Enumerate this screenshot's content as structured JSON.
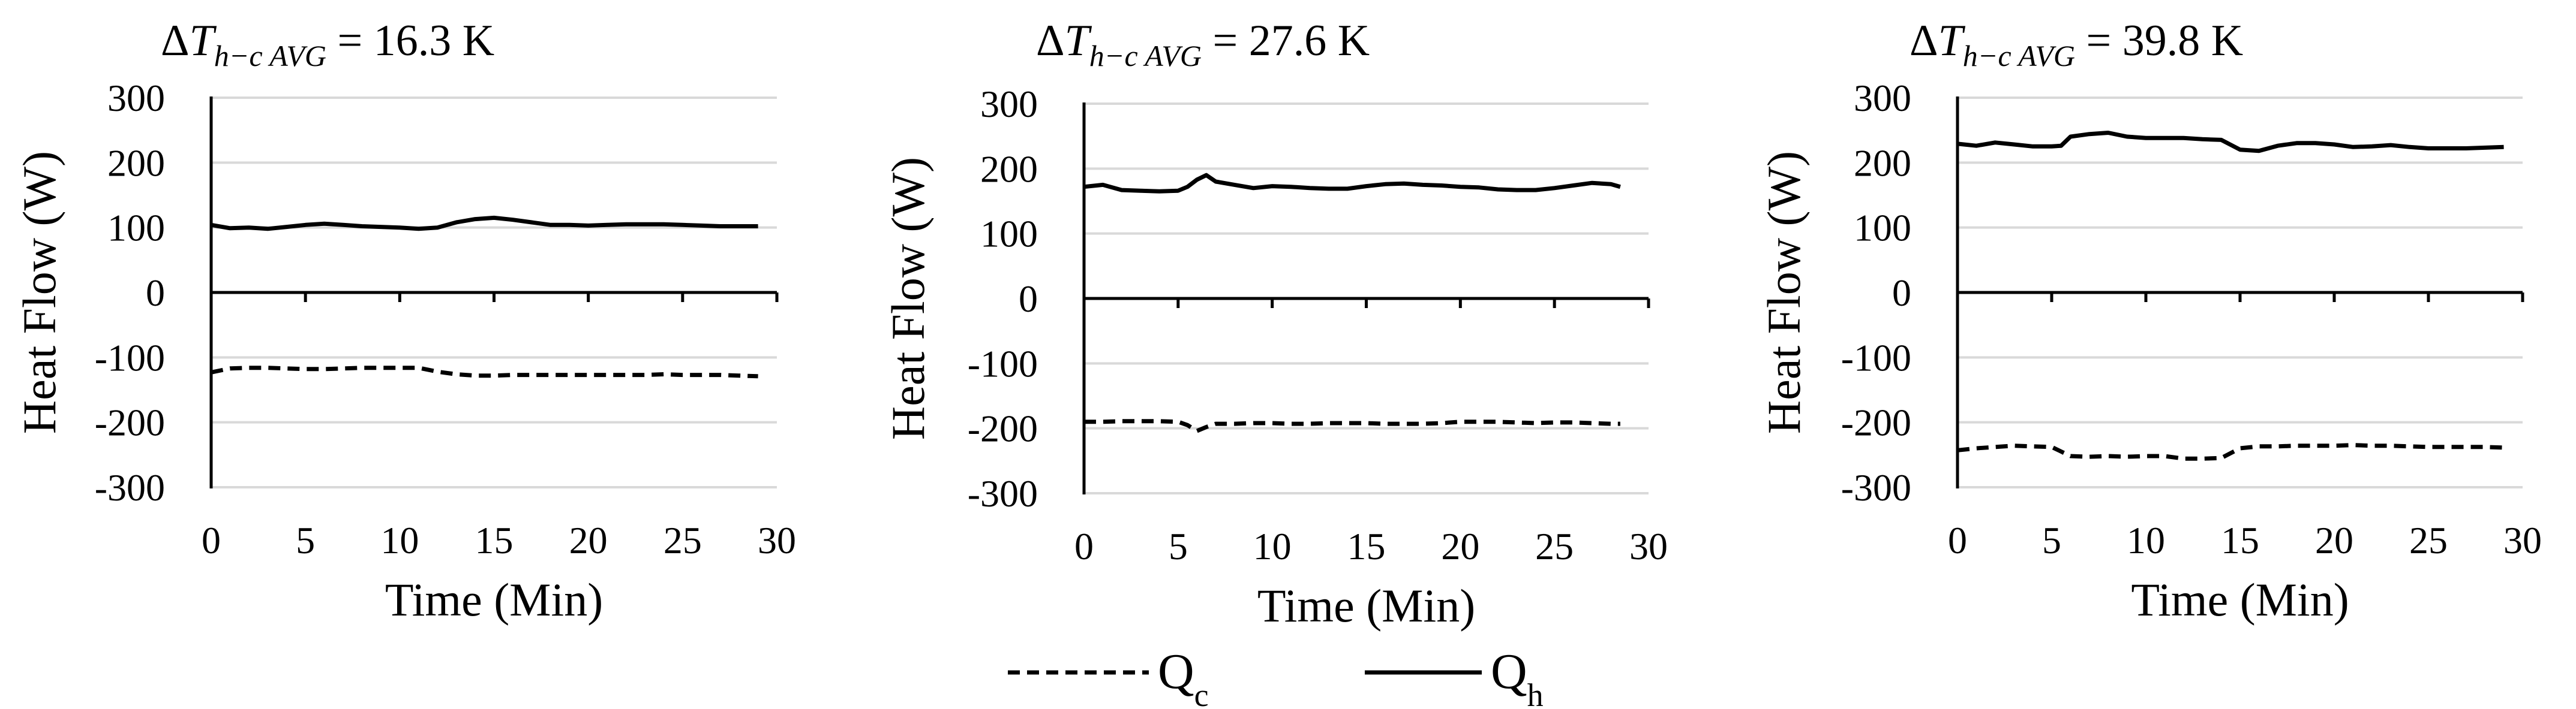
{
  "chart_data": [
    {
      "type": "line",
      "title": "ΔT_{h−c AVG} = 16.3 K",
      "title_parts": {
        "delta": "Δ",
        "T": "T",
        "subscript": "h−c AVG",
        "value": " = 16.3 K"
      },
      "xlabel": "Time (Min)",
      "ylabel": "Heat Flow (W)",
      "xlim": [
        0,
        30
      ],
      "ylim": [
        -300,
        300
      ],
      "xticks": [
        0,
        5,
        10,
        15,
        20,
        25,
        30
      ],
      "yticks": [
        300,
        200,
        100,
        0,
        -100,
        -200,
        -300
      ],
      "grid": "horizontal",
      "series": [
        {
          "name": "Qh",
          "style": "solid",
          "x": [
            0,
            1,
            2,
            3,
            4,
            5,
            6,
            7,
            8,
            9,
            10,
            11,
            12,
            13,
            14,
            15,
            16,
            17,
            18,
            19,
            20,
            21,
            22,
            23,
            24,
            25,
            26,
            27,
            28,
            29
          ],
          "values": [
            104,
            99,
            100,
            98,
            101,
            104,
            106,
            104,
            102,
            101,
            100,
            98,
            100,
            108,
            113,
            115,
            112,
            108,
            104,
            104,
            103,
            104,
            105,
            105,
            105,
            104,
            103,
            102,
            102,
            102
          ]
        },
        {
          "name": "Qc",
          "style": "dashed",
          "x": [
            0,
            1,
            2,
            3,
            4,
            5,
            6,
            7,
            8,
            9,
            10,
            11,
            12,
            13,
            14,
            15,
            16,
            17,
            18,
            19,
            20,
            21,
            22,
            23,
            24,
            25,
            26,
            27,
            28,
            29
          ],
          "values": [
            -123,
            -117,
            -116,
            -116,
            -117,
            -118,
            -118,
            -117,
            -116,
            -116,
            -116,
            -116,
            -122,
            -126,
            -128,
            -128,
            -127,
            -127,
            -127,
            -127,
            -127,
            -127,
            -127,
            -127,
            -126,
            -127,
            -127,
            -127,
            -128,
            -129
          ]
        }
      ]
    },
    {
      "type": "line",
      "title": "ΔT_{h−c AVG} = 27.6 K",
      "title_parts": {
        "delta": "Δ",
        "T": "T",
        "subscript": "h−c AVG",
        "value": " = 27.6 K"
      },
      "xlabel": "Time (Min)",
      "ylabel": "Heat Flow (W)",
      "xlim": [
        0,
        30
      ],
      "ylim": [
        -300,
        300
      ],
      "xticks": [
        0,
        5,
        10,
        15,
        20,
        25,
        30
      ],
      "yticks": [
        300,
        200,
        100,
        0,
        -100,
        -200,
        -300
      ],
      "grid": "horizontal",
      "series": [
        {
          "name": "Qh",
          "style": "solid",
          "x": [
            0,
            1,
            2,
            3,
            4,
            5,
            5.5,
            6,
            6.5,
            7,
            8,
            9,
            10,
            11,
            12,
            13,
            14,
            15,
            16,
            17,
            18,
            19,
            20,
            21,
            22,
            23,
            24,
            25,
            26,
            27,
            28,
            28.5
          ],
          "values": [
            172,
            175,
            167,
            166,
            165,
            166,
            172,
            183,
            190,
            180,
            175,
            170,
            173,
            172,
            170,
            169,
            169,
            173,
            176,
            177,
            175,
            174,
            172,
            171,
            168,
            167,
            167,
            170,
            174,
            178,
            176,
            172
          ]
        },
        {
          "name": "Qc",
          "style": "dashed",
          "x": [
            0,
            1,
            2,
            3,
            4,
            5,
            5.5,
            6,
            6.5,
            7,
            8,
            9,
            10,
            11,
            12,
            13,
            14,
            15,
            16,
            17,
            18,
            19,
            20,
            21,
            22,
            23,
            24,
            25,
            26,
            27,
            28,
            28.5
          ],
          "values": [
            -190,
            -190,
            -189,
            -189,
            -189,
            -190,
            -195,
            -204,
            -198,
            -193,
            -193,
            -192,
            -192,
            -193,
            -193,
            -192,
            -192,
            -192,
            -193,
            -193,
            -193,
            -192,
            -190,
            -190,
            -190,
            -191,
            -192,
            -191,
            -191,
            -192,
            -193,
            -193
          ]
        }
      ]
    },
    {
      "type": "line",
      "title": "ΔT_{h−c AVG} = 39.8 K",
      "title_parts": {
        "delta": "Δ",
        "T": "T",
        "subscript": "h−c AVG",
        "value": " = 39.8 K"
      },
      "xlabel": "Time (Min)",
      "ylabel": "Heat Flow (W)",
      "xlim": [
        0,
        30
      ],
      "ylim": [
        -300,
        300
      ],
      "xticks": [
        0,
        5,
        10,
        15,
        20,
        25,
        30
      ],
      "yticks": [
        300,
        200,
        100,
        0,
        -100,
        -200,
        -300
      ],
      "grid": "horizontal",
      "series": [
        {
          "name": "Qh",
          "style": "solid",
          "x": [
            0,
            1,
            2,
            3,
            4,
            5,
            5.5,
            6,
            7,
            8,
            9,
            10,
            11,
            12,
            13,
            14,
            15,
            16,
            17,
            18,
            19,
            20,
            21,
            22,
            23,
            24,
            25,
            26,
            27,
            28,
            29
          ],
          "values": [
            229,
            226,
            231,
            228,
            225,
            225,
            226,
            240,
            244,
            246,
            240,
            238,
            238,
            238,
            236,
            235,
            220,
            218,
            226,
            230,
            230,
            228,
            224,
            225,
            227,
            224,
            222,
            222,
            222,
            223,
            224
          ]
        },
        {
          "name": "Qc",
          "style": "dashed",
          "x": [
            0,
            1,
            2,
            3,
            4,
            5,
            5.5,
            6,
            7,
            8,
            9,
            10,
            11,
            12,
            13,
            14,
            15,
            16,
            17,
            18,
            19,
            20,
            21,
            22,
            23,
            24,
            25,
            26,
            27,
            28,
            29
          ],
          "values": [
            -243,
            -240,
            -238,
            -236,
            -237,
            -238,
            -245,
            -252,
            -253,
            -252,
            -253,
            -252,
            -252,
            -256,
            -256,
            -255,
            -240,
            -237,
            -237,
            -236,
            -236,
            -236,
            -235,
            -236,
            -236,
            -237,
            -238,
            -238,
            -238,
            -238,
            -239
          ]
        }
      ]
    }
  ],
  "legend": {
    "position": "bottom-center",
    "items": [
      {
        "label_main": "Q",
        "label_sub": "c",
        "style": "dashed"
      },
      {
        "label_main": "Q",
        "label_sub": "h",
        "style": "solid"
      }
    ]
  },
  "colors": {
    "line": "#000000",
    "grid": "#d9d9d9"
  }
}
